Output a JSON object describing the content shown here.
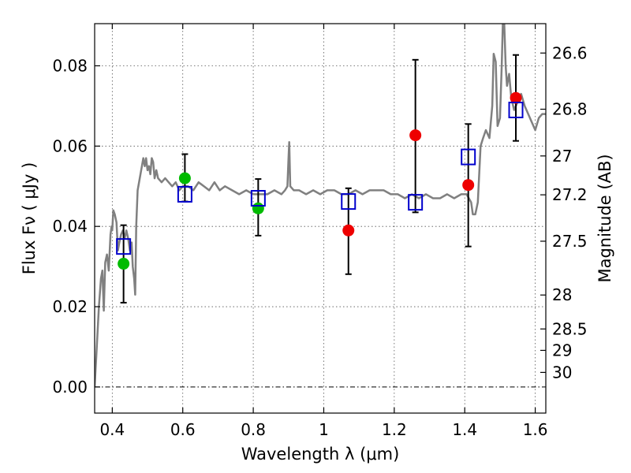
{
  "chart_data": {
    "type": "scatter",
    "xlabel": "Wavelength  λ (μm)",
    "ylabel": "Flux  Fν  ( μJy )",
    "ylabel_right": "Magnitude (AB)",
    "xlim": [
      0.35,
      1.63
    ],
    "ylim": [
      -0.0065,
      0.0905
    ],
    "x_ticks": [
      0.4,
      0.6,
      0.8,
      1.0,
      1.2,
      1.4,
      1.6
    ],
    "x_tick_labels": [
      "0.4",
      "0.6",
      "0.8",
      "1",
      "1.2",
      "1.4",
      "1.6"
    ],
    "y_ticks": [
      0.0,
      0.02,
      0.04,
      0.06,
      0.08
    ],
    "y_tick_labels": [
      "0.00",
      "0.02",
      "0.04",
      "0.06",
      "0.08"
    ],
    "right_ticks": [
      26.6,
      26.8,
      27.0,
      27.2,
      27.5,
      28.0,
      28.5,
      29.0,
      30.0
    ],
    "right_tick_labels": [
      "26.6",
      "26.8",
      "27",
      "27.2",
      "27.5",
      "28",
      "28.5",
      "29",
      "30"
    ],
    "grid": true,
    "colors": {
      "model": "#808080",
      "green": "#00bb00",
      "red": "#ee0000",
      "box": "#0000cc"
    },
    "series": [
      {
        "name": "observed_green",
        "marker": "circle",
        "color": "#00bb00",
        "points": [
          {
            "x": 0.432,
            "y": 0.0307
          },
          {
            "x": 0.606,
            "y": 0.052
          },
          {
            "x": 0.814,
            "y": 0.0445
          }
        ]
      },
      {
        "name": "observed_red",
        "marker": "circle",
        "color": "#ee0000",
        "points": [
          {
            "x": 1.07,
            "y": 0.039
          },
          {
            "x": 1.26,
            "y": 0.0627
          },
          {
            "x": 1.41,
            "y": 0.0503
          },
          {
            "x": 1.545,
            "y": 0.072
          }
        ]
      },
      {
        "name": "model_bandpass",
        "marker": "square",
        "color": "#0000cc",
        "points": [
          {
            "x": 0.432,
            "y": 0.035
          },
          {
            "x": 0.606,
            "y": 0.048
          },
          {
            "x": 0.814,
            "y": 0.047
          },
          {
            "x": 1.07,
            "y": 0.0462
          },
          {
            "x": 1.26,
            "y": 0.046
          },
          {
            "x": 1.41,
            "y": 0.0573
          },
          {
            "x": 1.545,
            "y": 0.069
          }
        ]
      }
    ],
    "error_bars": [
      {
        "x": 0.432,
        "low": 0.021,
        "high": 0.0403
      },
      {
        "x": 0.606,
        "low": 0.0462,
        "high": 0.058
      },
      {
        "x": 0.814,
        "low": 0.0377,
        "high": 0.0518
      },
      {
        "x": 1.07,
        "low": 0.0281,
        "high": 0.0495
      },
      {
        "x": 1.26,
        "low": 0.0435,
        "high": 0.0815
      },
      {
        "x": 1.41,
        "low": 0.035,
        "high": 0.0655
      },
      {
        "x": 1.545,
        "low": 0.0613,
        "high": 0.0827
      }
    ],
    "model_spectrum": [
      [
        0.35,
        0.0
      ],
      [
        0.356,
        0.01
      ],
      [
        0.362,
        0.02
      ],
      [
        0.368,
        0.027
      ],
      [
        0.372,
        0.029
      ],
      [
        0.376,
        0.019
      ],
      [
        0.38,
        0.031
      ],
      [
        0.385,
        0.033
      ],
      [
        0.39,
        0.029
      ],
      [
        0.395,
        0.038
      ],
      [
        0.398,
        0.04
      ],
      [
        0.4,
        0.039
      ],
      [
        0.403,
        0.044
      ],
      [
        0.407,
        0.043
      ],
      [
        0.412,
        0.041
      ],
      [
        0.416,
        0.034
      ],
      [
        0.42,
        0.036
      ],
      [
        0.425,
        0.038
      ],
      [
        0.43,
        0.039
      ],
      [
        0.435,
        0.037
      ],
      [
        0.44,
        0.039
      ],
      [
        0.445,
        0.037
      ],
      [
        0.45,
        0.034
      ],
      [
        0.455,
        0.036
      ],
      [
        0.458,
        0.03
      ],
      [
        0.462,
        0.027
      ],
      [
        0.465,
        0.023
      ],
      [
        0.468,
        0.04
      ],
      [
        0.472,
        0.049
      ],
      [
        0.478,
        0.052
      ],
      [
        0.484,
        0.055
      ],
      [
        0.488,
        0.057
      ],
      [
        0.492,
        0.055
      ],
      [
        0.496,
        0.057
      ],
      [
        0.5,
        0.054
      ],
      [
        0.504,
        0.055
      ],
      [
        0.508,
        0.053
      ],
      [
        0.512,
        0.057
      ],
      [
        0.516,
        0.056
      ],
      [
        0.52,
        0.052
      ],
      [
        0.525,
        0.054
      ],
      [
        0.53,
        0.052
      ],
      [
        0.54,
        0.051
      ],
      [
        0.55,
        0.052
      ],
      [
        0.56,
        0.051
      ],
      [
        0.57,
        0.05
      ],
      [
        0.58,
        0.051
      ],
      [
        0.59,
        0.049
      ],
      [
        0.6,
        0.05
      ],
      [
        0.615,
        0.05
      ],
      [
        0.63,
        0.049
      ],
      [
        0.645,
        0.051
      ],
      [
        0.66,
        0.05
      ],
      [
        0.675,
        0.049
      ],
      [
        0.69,
        0.051
      ],
      [
        0.705,
        0.049
      ],
      [
        0.72,
        0.05
      ],
      [
        0.74,
        0.049
      ],
      [
        0.76,
        0.048
      ],
      [
        0.78,
        0.049
      ],
      [
        0.8,
        0.048
      ],
      [
        0.82,
        0.048
      ],
      [
        0.84,
        0.048
      ],
      [
        0.86,
        0.049
      ],
      [
        0.88,
        0.048
      ],
      [
        0.89,
        0.049
      ],
      [
        0.897,
        0.05
      ],
      [
        0.9,
        0.057
      ],
      [
        0.902,
        0.061
      ],
      [
        0.905,
        0.05
      ],
      [
        0.915,
        0.049
      ],
      [
        0.93,
        0.049
      ],
      [
        0.95,
        0.048
      ],
      [
        0.97,
        0.049
      ],
      [
        0.99,
        0.048
      ],
      [
        1.01,
        0.049
      ],
      [
        1.03,
        0.049
      ],
      [
        1.05,
        0.048
      ],
      [
        1.07,
        0.048
      ],
      [
        1.09,
        0.049
      ],
      [
        1.11,
        0.048
      ],
      [
        1.13,
        0.049
      ],
      [
        1.15,
        0.049
      ],
      [
        1.17,
        0.049
      ],
      [
        1.19,
        0.048
      ],
      [
        1.21,
        0.048
      ],
      [
        1.23,
        0.047
      ],
      [
        1.25,
        0.048
      ],
      [
        1.27,
        0.047
      ],
      [
        1.29,
        0.048
      ],
      [
        1.31,
        0.047
      ],
      [
        1.33,
        0.047
      ],
      [
        1.35,
        0.048
      ],
      [
        1.37,
        0.047
      ],
      [
        1.39,
        0.048
      ],
      [
        1.405,
        0.048
      ],
      [
        1.418,
        0.046
      ],
      [
        1.423,
        0.043
      ],
      [
        1.43,
        0.043
      ],
      [
        1.437,
        0.046
      ],
      [
        1.445,
        0.06
      ],
      [
        1.452,
        0.062
      ],
      [
        1.46,
        0.064
      ],
      [
        1.47,
        0.062
      ],
      [
        1.478,
        0.07
      ],
      [
        1.482,
        0.083
      ],
      [
        1.488,
        0.081
      ],
      [
        1.493,
        0.065
      ],
      [
        1.5,
        0.067
      ],
      [
        1.505,
        0.08
      ],
      [
        1.508,
        0.0905
      ],
      [
        1.512,
        0.0905
      ],
      [
        1.516,
        0.08
      ],
      [
        1.52,
        0.075
      ],
      [
        1.526,
        0.078
      ],
      [
        1.532,
        0.072
      ],
      [
        1.54,
        0.069
      ],
      [
        1.55,
        0.071
      ],
      [
        1.56,
        0.073
      ],
      [
        1.57,
        0.07
      ],
      [
        1.58,
        0.068
      ],
      [
        1.59,
        0.066
      ],
      [
        1.6,
        0.064
      ],
      [
        1.61,
        0.067
      ],
      [
        1.62,
        0.068
      ],
      [
        1.63,
        0.068
      ]
    ]
  }
}
